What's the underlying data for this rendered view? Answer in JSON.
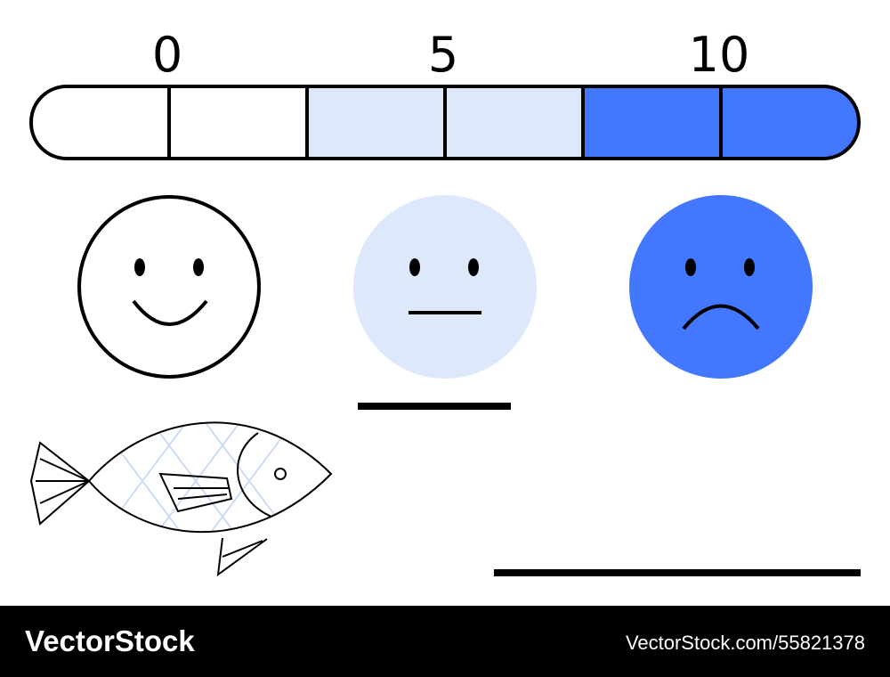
{
  "scale": {
    "labels": [
      "0",
      "5",
      "10"
    ]
  },
  "footer": {
    "brand": "VectorStock",
    "credit": "VectorStock.com/55821378"
  }
}
